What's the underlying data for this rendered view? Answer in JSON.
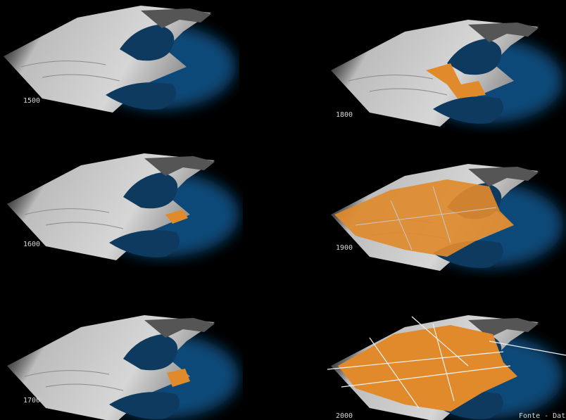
{
  "panels": [
    {
      "year": "1500"
    },
    {
      "year": "1800"
    },
    {
      "year": "1600"
    },
    {
      "year": "1900"
    },
    {
      "year": "1700"
    },
    {
      "year": "2000"
    }
  ],
  "source": "Fonte - DataRi"
}
